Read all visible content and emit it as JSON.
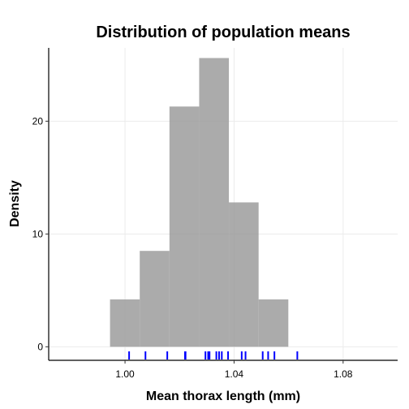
{
  "chart_data": {
    "type": "bar",
    "title": "Distribution of population means",
    "xlabel": "Mean thorax length (mm)",
    "ylabel": "Density",
    "xlim": [
      0.972,
      1.1
    ],
    "ylim": [
      -1.2,
      26.5
    ],
    "x_ticks": [
      1.0,
      1.04,
      1.08
    ],
    "x_tick_labels": [
      "1.00",
      "1.04",
      "1.08"
    ],
    "y_ticks": [
      0,
      10,
      20
    ],
    "y_tick_labels": [
      "0",
      "10",
      "20"
    ],
    "bins": [
      {
        "x0": 0.9945,
        "x1": 1.0054,
        "density": 4.2
      },
      {
        "x0": 1.0054,
        "x1": 1.0163,
        "density": 8.5
      },
      {
        "x0": 1.0163,
        "x1": 1.0272,
        "density": 21.3
      },
      {
        "x0": 1.0272,
        "x1": 1.0381,
        "density": 25.6
      },
      {
        "x0": 1.0381,
        "x1": 1.049,
        "density": 12.8
      },
      {
        "x0": 1.049,
        "x1": 1.0599,
        "density": 4.2
      }
    ],
    "rug_values": [
      1.0015,
      1.0075,
      1.0155,
      1.022,
      1.0222,
      1.0295,
      1.0305,
      1.031,
      1.0335,
      1.0345,
      1.0355,
      1.0378,
      1.0428,
      1.0442,
      1.0505,
      1.0525,
      1.0548,
      1.0632
    ],
    "grid": true,
    "colors": {
      "bars": "#999999",
      "rug": "#0000ff"
    }
  }
}
